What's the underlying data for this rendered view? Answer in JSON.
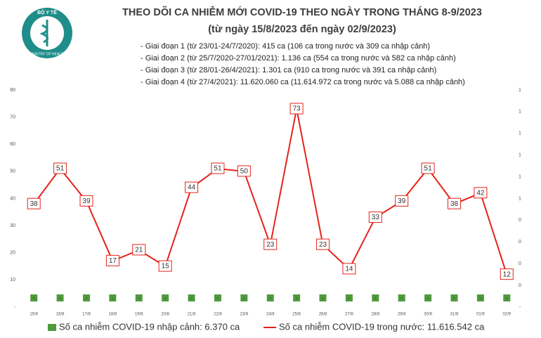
{
  "logo": {
    "top": "BỘ Y TẾ",
    "bottom": "MINISTRY OF HEALTH"
  },
  "chart_data": {
    "type": "line",
    "title": "THEO DÕI CA NHIỄM MỚI COVID-19 THEO NGÀY TRONG THÁNG 8-9/2023",
    "subtitle": "(từ ngày 15/8/2023 đến ngày 02/9/2023)",
    "notes": [
      "- Giai đoạn 1 (từ 23/01-24/7/2020): 415 ca (106 ca trong nước và 309 ca nhập cảnh)",
      "- Giai đoạn 2 (từ 25/7/2020-27/01/2021): 1.136 ca (554 ca trong nước và 582 ca nhập cảnh)",
      "- Giai đoạn 3 (từ 28/01-26/4/2021): 1.301 ca (910 ca trong nước và 391 ca nhập cảnh)",
      "- Giai đoạn 4 (từ 27/4/2021): 11.620.060 ca (11.614.972 ca trong nước và 5.088 ca nhập cảnh)"
    ],
    "categories": [
      "15/8",
      "16/8",
      "17/8",
      "18/8",
      "19/8",
      "20/8",
      "21/8",
      "22/8",
      "23/8",
      "24/8",
      "25/8",
      "26/8",
      "27/8",
      "28/8",
      "29/8",
      "30/8",
      "31/8",
      "01/9",
      "02/9"
    ],
    "series": [
      {
        "name": "Số ca nhiễm COVID-19 nhập cảnh: 6.370 ca",
        "type": "bar",
        "color": "#4e9a3c",
        "values": [
          0,
          0,
          0,
          0,
          0,
          0,
          0,
          0,
          0,
          0,
          0,
          0,
          0,
          0,
          0,
          0,
          0,
          0,
          0
        ],
        "value_labels": [
          "-",
          "-",
          "-",
          "-",
          "-",
          "-",
          "-",
          "-",
          "-",
          "-",
          "-",
          "-",
          "-",
          "-",
          "-",
          "-",
          "-",
          "-",
          "-"
        ]
      },
      {
        "name": "Số ca nhiễm COVID-19 trong nước: 11.616.542 ca",
        "type": "line",
        "color": "#e5231b",
        "values": [
          38,
          51,
          39,
          17,
          21,
          15,
          44,
          51,
          50,
          23,
          73,
          23,
          14,
          33,
          39,
          51,
          38,
          42,
          12
        ]
      }
    ],
    "ylim": [
      0,
      80
    ],
    "yticks": [
      {
        "value": 0,
        "label": "-"
      },
      10,
      20,
      30,
      40,
      50,
      60,
      70,
      80
    ],
    "y2lim": [
      0,
      1
    ],
    "y2ticks": [
      {
        "value": 0,
        "label": "-"
      },
      {
        "value": 0.1,
        "label": "0"
      },
      {
        "value": 0.2,
        "label": "0"
      },
      {
        "value": 0.3,
        "label": "0"
      },
      {
        "value": 0.4,
        "label": "0"
      },
      {
        "value": 0.5,
        "label": "1"
      },
      {
        "value": 0.6,
        "label": "1"
      },
      {
        "value": 0.7,
        "label": "1"
      },
      {
        "value": 0.8,
        "label": "1"
      },
      {
        "value": 0.9,
        "label": "1"
      },
      {
        "value": 1,
        "label": "1"
      }
    ],
    "grid": false,
    "legend": "bottom"
  }
}
